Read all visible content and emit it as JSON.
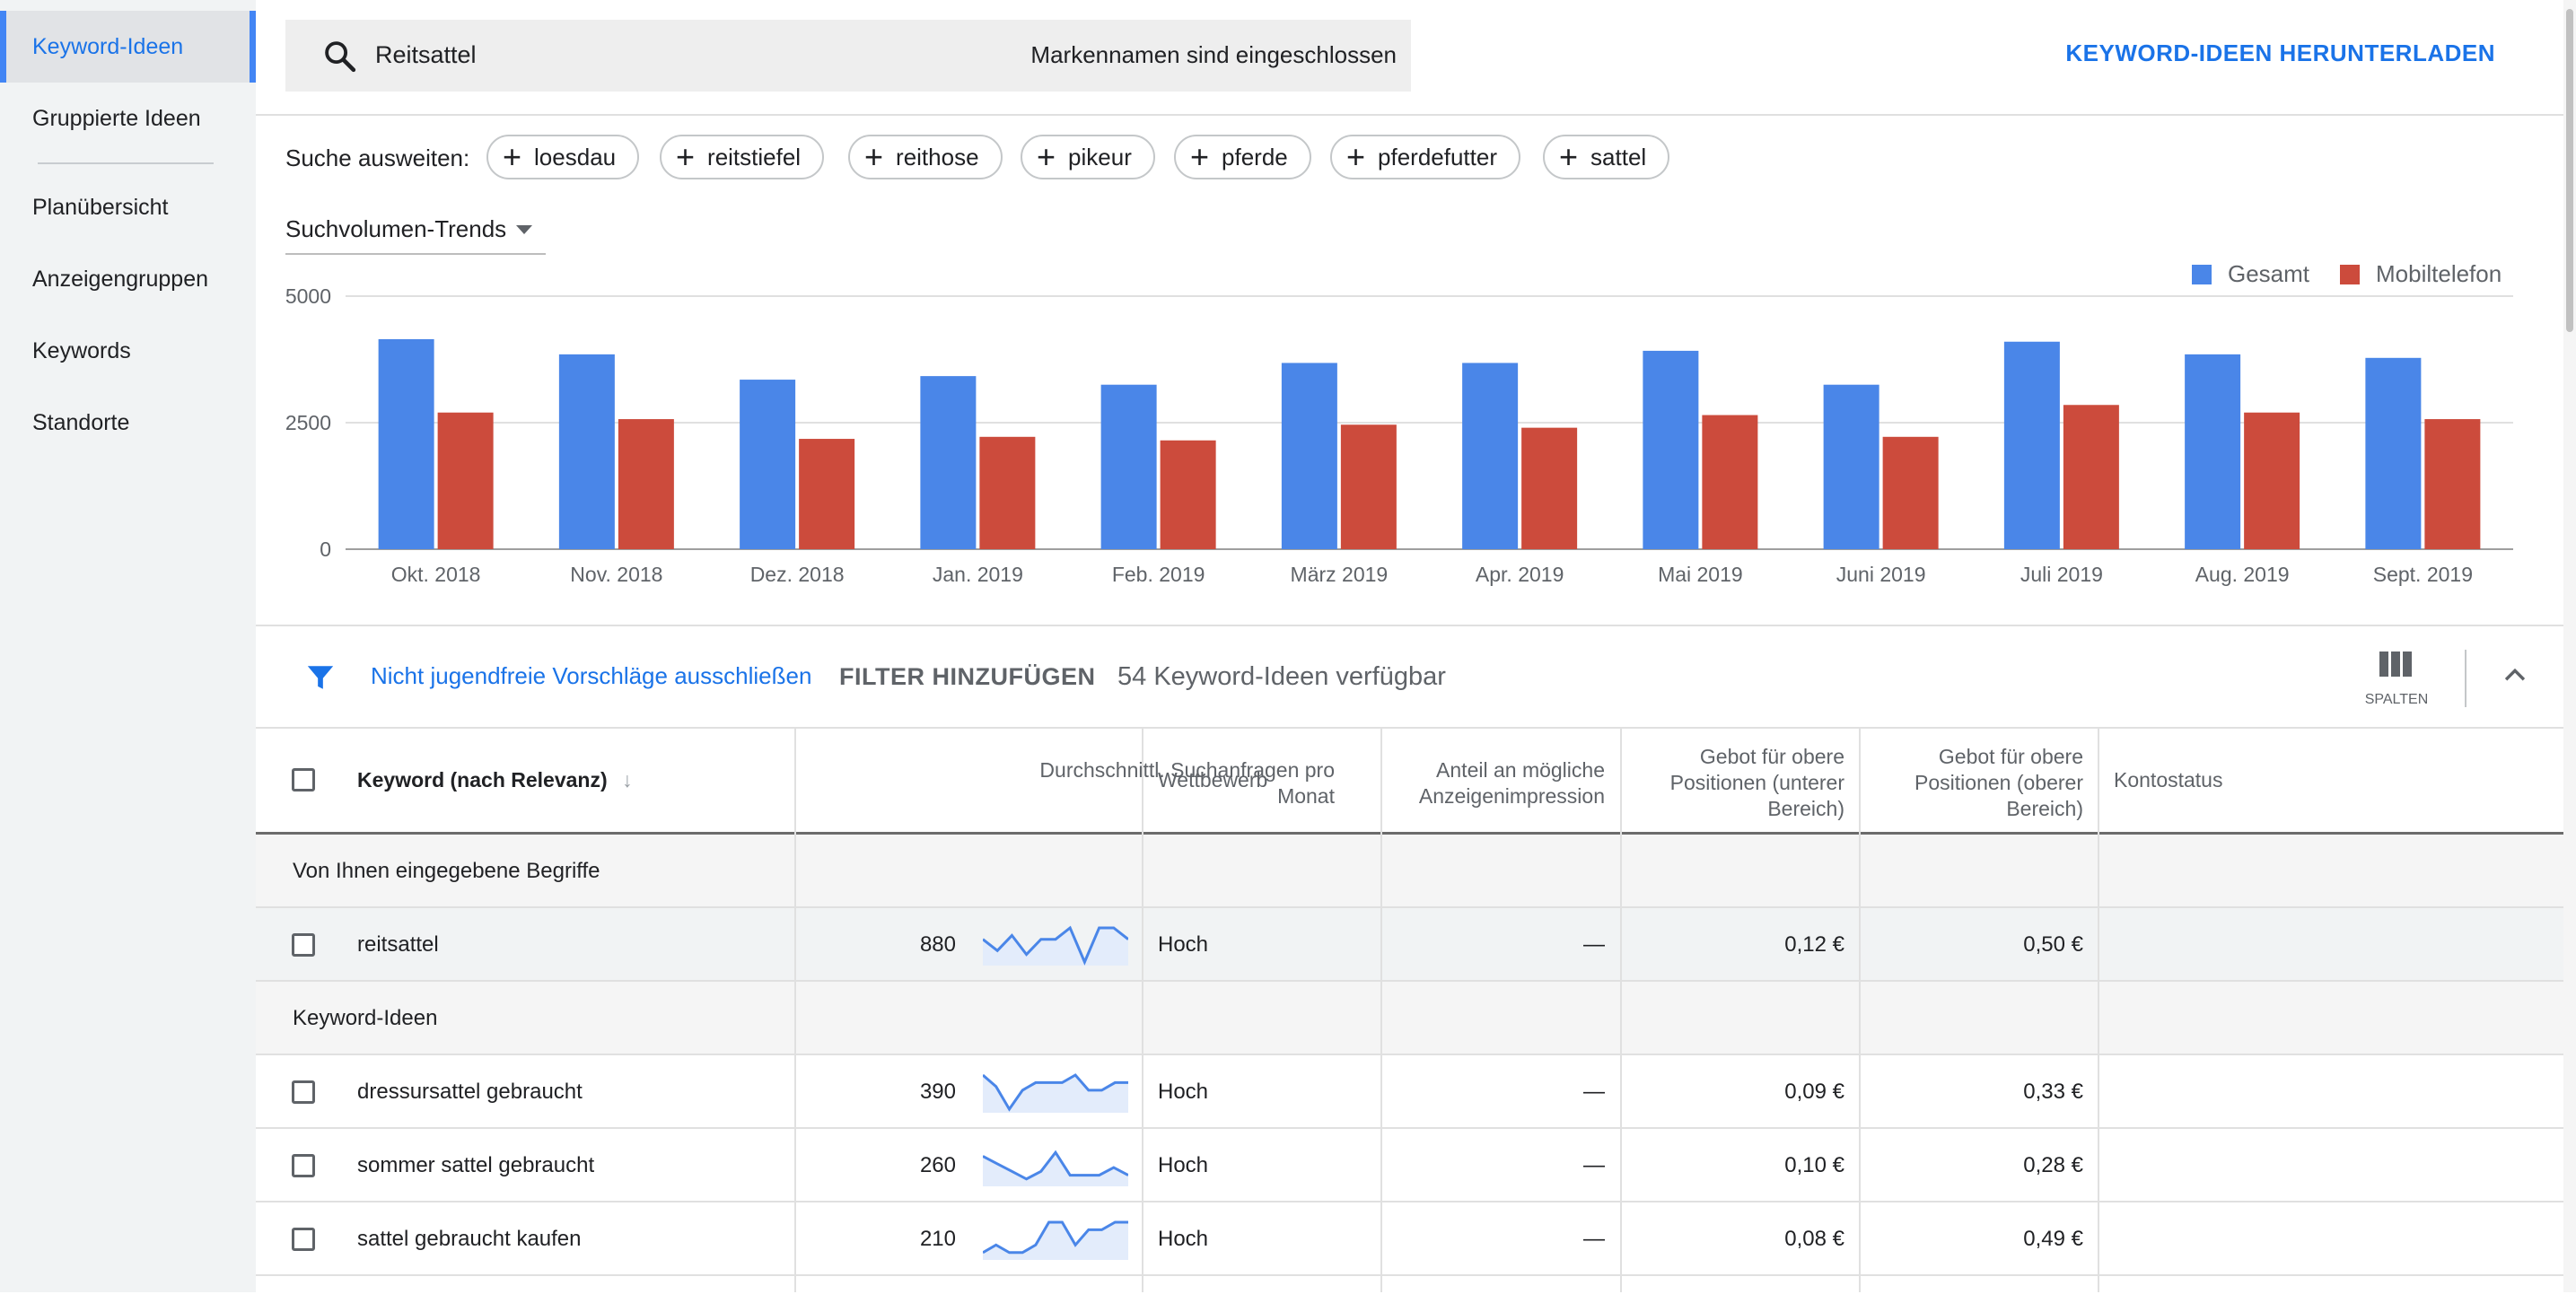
{
  "sidebar": {
    "items": [
      {
        "label": "Keyword-Ideen",
        "active": true
      },
      {
        "label": "Gruppierte Ideen"
      },
      {
        "label": "Planübersicht"
      },
      {
        "label": "Anzeigengruppen"
      },
      {
        "label": "Keywords"
      },
      {
        "label": "Standorte"
      }
    ]
  },
  "header": {
    "search_value": "Reitsattel",
    "brand_note": "Markennamen sind eingeschlossen",
    "download_label": "KEYWORD-IDEEN HERUNTERLADEN"
  },
  "expand": {
    "label": "Suche ausweiten:",
    "chips": [
      "loesdau",
      "reitstiefel",
      "reithose",
      "pikeur",
      "pferde",
      "pferdefutter",
      "sattel"
    ]
  },
  "chart_section": {
    "selector_label": "Suchvolumen-Trends",
    "legend": [
      {
        "label": "Gesamt",
        "color": "#4a86e8"
      },
      {
        "label": "Mobiltelefon",
        "color": "#cc4b3c"
      }
    ]
  },
  "chart_data": {
    "type": "bar",
    "categories": [
      "Okt. 2018",
      "Nov. 2018",
      "Dez. 2018",
      "Jan. 2019",
      "Feb. 2019",
      "März 2019",
      "Apr. 2019",
      "Mai 2019",
      "Juni 2019",
      "Juli 2019",
      "Aug. 2019",
      "Sept. 2019"
    ],
    "series": [
      {
        "name": "Gesamt",
        "color": "#4a86e8",
        "values": [
          4150,
          3850,
          3350,
          3420,
          3250,
          3680,
          3680,
          3920,
          3250,
          4100,
          3850,
          3780
        ]
      },
      {
        "name": "Mobiltelefon",
        "color": "#cc4b3c",
        "values": [
          2700,
          2570,
          2180,
          2220,
          2150,
          2460,
          2400,
          2650,
          2220,
          2850,
          2700,
          2570
        ]
      }
    ],
    "yticks": [
      "0",
      "2500",
      "5000"
    ],
    "ylim": [
      0,
      5000
    ],
    "grid": true,
    "legend_position": "top-right"
  },
  "filterbar": {
    "adult_filter": "Nicht jugendfreie Vorschläge ausschließen",
    "add_filter": "FILTER HINZUFÜGEN",
    "count": "54 Keyword-Ideen verfügbar",
    "columns_label": "SPALTEN"
  },
  "table": {
    "headers": {
      "keyword": "Keyword (nach Relevanz)",
      "avg_searches": [
        "Durchschnittl. Suchanfragen pro",
        "Monat"
      ],
      "competition": "Wettbewerb",
      "impression_share": [
        "Anteil an mögliche",
        "Anzeigenimpression"
      ],
      "bid_low": [
        "Gebot für obere",
        "Positionen (unterer",
        "Bereich)"
      ],
      "bid_high": [
        "Gebot für obere",
        "Positionen (oberer",
        "Bereich)"
      ],
      "account_status": "Kontostatus"
    },
    "section_entered": "Von Ihnen eingegebene Begriffe",
    "section_ideas": "Keyword-Ideen",
    "entered_rows": [
      {
        "keyword": "reitsattel",
        "searches": "880",
        "competition": "Hoch",
        "impression": "—",
        "bid_low": "0,12 €",
        "bid_high": "0,50 €",
        "trend": [
          6,
          3,
          7,
          2,
          6,
          6,
          9,
          0,
          9,
          9,
          6
        ]
      }
    ],
    "idea_rows": [
      {
        "keyword": "dressursattel gebraucht",
        "searches": "390",
        "competition": "Hoch",
        "impression": "—",
        "bid_low": "0,09 €",
        "bid_high": "0,33 €",
        "trend": [
          9,
          6,
          0,
          5,
          7,
          7,
          7,
          9,
          5,
          5,
          7,
          7
        ]
      },
      {
        "keyword": "sommer sattel gebraucht",
        "searches": "260",
        "competition": "Hoch",
        "impression": "—",
        "bid_low": "0,10 €",
        "bid_high": "0,28 €",
        "trend": [
          7,
          5,
          3,
          1,
          3,
          8,
          2,
          2,
          2,
          4,
          2
        ]
      },
      {
        "keyword": "sattel gebraucht kaufen",
        "searches": "210",
        "competition": "Hoch",
        "impression": "—",
        "bid_low": "0,08 €",
        "bid_high": "0,49 €",
        "trend": [
          1,
          3,
          1,
          1,
          3,
          9,
          9,
          3,
          7,
          7,
          9,
          9
        ]
      }
    ]
  }
}
